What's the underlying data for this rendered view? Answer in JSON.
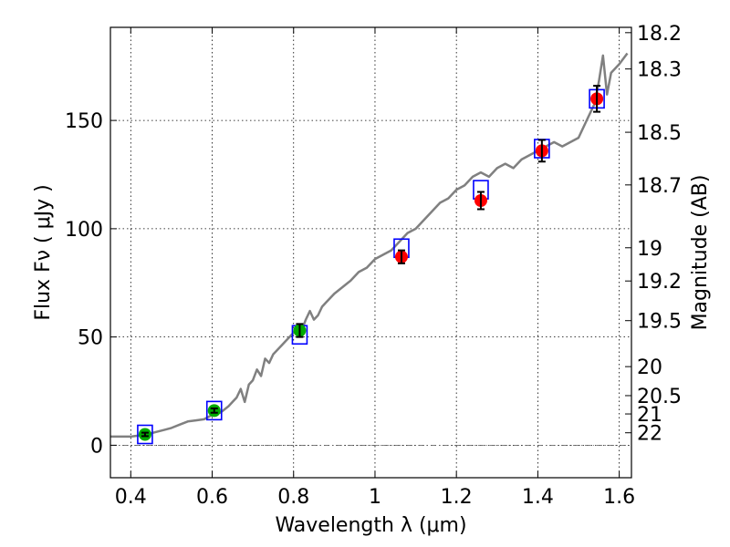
{
  "chart_data": {
    "type": "scatter",
    "xlabel": "Wavelength  λ (μm)",
    "ylabel": "Flux  Fν  ( μJy )",
    "y2label": "Magnitude (AB)",
    "xlim": [
      0.35,
      1.63
    ],
    "ylim": [
      -15,
      193
    ],
    "xticks": [
      {
        "value": 0.4,
        "label": "0.4"
      },
      {
        "value": 0.6,
        "label": "0.6"
      },
      {
        "value": 0.8,
        "label": "0.8"
      },
      {
        "value": 1.0,
        "label": "1"
      },
      {
        "value": 1.2,
        "label": "1.2"
      },
      {
        "value": 1.4,
        "label": "1.4"
      },
      {
        "value": 1.6,
        "label": "1.6"
      }
    ],
    "yticks": [
      {
        "value": 0,
        "label": "0"
      },
      {
        "value": 50,
        "label": "50"
      },
      {
        "value": 100,
        "label": "100"
      },
      {
        "value": 150,
        "label": "150"
      }
    ],
    "magnitude_ticks": [
      {
        "mag": 18.2,
        "label": "18.2"
      },
      {
        "mag": 18.3,
        "label": "18.3"
      },
      {
        "mag": 18.5,
        "label": "18.5"
      },
      {
        "mag": 18.7,
        "label": "18.7"
      },
      {
        "mag": 19.0,
        "label": "19"
      },
      {
        "mag": 19.2,
        "label": "19.2"
      },
      {
        "mag": 19.5,
        "label": "19.5"
      },
      {
        "mag": 20.0,
        "label": "20"
      },
      {
        "mag": 20.5,
        "label": "20.5"
      },
      {
        "mag": 21.0,
        "label": "21"
      },
      {
        "mag": 22.0,
        "label": "22"
      }
    ],
    "grid": true,
    "model_spectrum": {
      "color": "#808080",
      "x": [
        0.35,
        0.38,
        0.4,
        0.42,
        0.44,
        0.46,
        0.48,
        0.5,
        0.52,
        0.54,
        0.56,
        0.58,
        0.6,
        0.62,
        0.64,
        0.65,
        0.66,
        0.67,
        0.68,
        0.69,
        0.7,
        0.71,
        0.72,
        0.73,
        0.74,
        0.75,
        0.76,
        0.77,
        0.78,
        0.79,
        0.8,
        0.81,
        0.82,
        0.83,
        0.84,
        0.85,
        0.86,
        0.87,
        0.88,
        0.9,
        0.92,
        0.94,
        0.96,
        0.98,
        1.0,
        1.02,
        1.04,
        1.06,
        1.08,
        1.1,
        1.12,
        1.14,
        1.16,
        1.18,
        1.2,
        1.22,
        1.24,
        1.26,
        1.28,
        1.3,
        1.32,
        1.34,
        1.36,
        1.38,
        1.4,
        1.42,
        1.44,
        1.46,
        1.48,
        1.5,
        1.52,
        1.54,
        1.55,
        1.56,
        1.57,
        1.58,
        1.6,
        1.62
      ],
      "y": [
        4,
        4,
        4,
        4.5,
        5,
        6,
        7,
        8,
        9.5,
        11,
        11.5,
        12,
        14,
        15,
        18,
        20,
        22,
        26,
        20,
        28,
        30,
        35,
        32,
        40,
        38,
        42,
        44,
        46,
        48,
        50,
        52,
        54,
        53,
        58,
        62,
        58,
        60,
        64,
        66,
        70,
        73,
        76,
        80,
        82,
        86,
        88,
        90,
        94,
        98,
        100,
        104,
        108,
        112,
        114,
        118,
        120,
        124,
        126,
        124,
        128,
        130,
        128,
        132,
        134,
        136,
        138,
        140,
        138,
        140,
        142,
        150,
        158,
        168,
        180,
        162,
        172,
        176,
        181
      ]
    },
    "observed_green": {
      "color": "#00aa00",
      "x": [
        0.435,
        0.605,
        0.815
      ],
      "y": [
        5,
        16,
        53
      ],
      "err": [
        0.8,
        1.0,
        3
      ]
    },
    "observed_red": {
      "color": "#ff0000",
      "x": [
        1.065,
        1.26,
        1.41,
        1.545
      ],
      "y": [
        87,
        113,
        136,
        160
      ],
      "err": [
        3,
        4,
        5,
        6
      ]
    },
    "synthetic_boxes": {
      "color": "#0000ff",
      "x": [
        0.435,
        0.605,
        0.815,
        1.065,
        1.26,
        1.41,
        1.545
      ],
      "y": [
        5,
        16,
        51,
        91,
        118,
        137,
        160
      ]
    }
  }
}
